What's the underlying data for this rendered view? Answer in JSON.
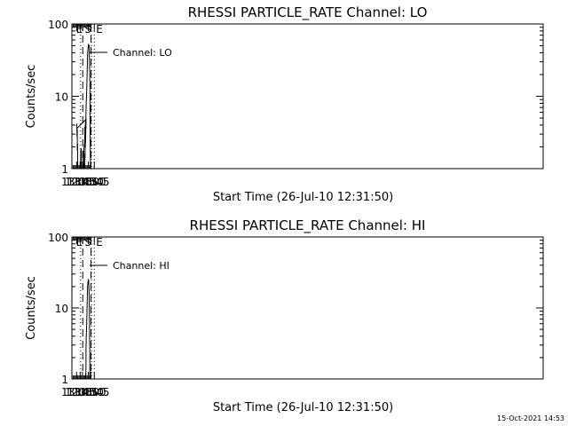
{
  "footer": {
    "timestamp": "15-Oct-2021 14:53"
  },
  "chart_data": [
    {
      "type": "line",
      "title": "RHESSI PARTICLE_RATE Channel: LO",
      "xlabel": "Start Time (26-Jul-10 12:31:50)",
      "ylabel": "Counts/sec",
      "y_scale": "log",
      "ylim": [
        1,
        100
      ],
      "xlim_minutes": [
        12.4,
        46.0
      ],
      "x_ticks": [
        {
          "label": "12:45",
          "value": 12.75
        },
        {
          "label": "13:00",
          "value": 13.0
        },
        {
          "label": "13:15",
          "value": 13.25
        },
        {
          "label": "13:30",
          "value": 13.5
        },
        {
          "label": "13:45",
          "value": 13.75
        },
        {
          "label": "14:00",
          "value": 14.0
        }
      ],
      "y_ticks": [
        {
          "label": "1",
          "value": 1
        },
        {
          "label": "10",
          "value": 10
        },
        {
          "label": "100",
          "value": 100
        }
      ],
      "legend": {
        "label": "Channel: LO",
        "position": "top-left"
      },
      "markers": [
        {
          "label": "E",
          "time": 12.5,
          "style": "none"
        },
        {
          "label": "",
          "time": 12.768,
          "style": "dotted"
        },
        {
          "label": "S",
          "time": 13.263,
          "style": "dashed"
        },
        {
          "label": "",
          "time": 13.606,
          "style": "dashed"
        },
        {
          "label": "E",
          "time": 13.75,
          "style": "dotted"
        },
        {
          "label": "",
          "time": 14.03,
          "style": "dotted"
        }
      ],
      "series": [
        {
          "name": "Channel: LO",
          "segments": [
            [
              [
                12.768,
                1.0
              ],
              [
                12.775,
                1.9
              ],
              [
                12.782,
                1.0
              ],
              [
                12.79,
                1.0
              ],
              [
                12.795,
                1.9
              ],
              [
                12.8,
                1.0
              ]
            ],
            [
              [
                12.893,
                1.0
              ],
              [
                12.9,
                1.9
              ],
              [
                12.92,
                2.0
              ],
              [
                12.935,
                2.2
              ],
              [
                12.945,
                3.0
              ],
              [
                12.952,
                3.8
              ],
              [
                12.96,
                2.8
              ],
              [
                12.968,
                4.0
              ],
              [
                12.975,
                3.6
              ],
              [
                12.983,
                4.6
              ],
              [
                12.99,
                3.5
              ],
              [
                12.998,
                4.8
              ],
              [
                13.005,
                3.6
              ],
              [
                13.012,
                4.2
              ],
              [
                13.018,
                2.8
              ],
              [
                13.025,
                3.5
              ],
              [
                13.032,
                1.8
              ],
              [
                13.04,
                2.2
              ],
              [
                13.047,
                1.0
              ]
            ],
            [
              [
                13.275,
                1.0
              ],
              [
                13.282,
                1.7
              ],
              [
                13.29,
                1.0
              ],
              [
                13.298,
                1.8
              ],
              [
                13.305,
                1.2
              ],
              [
                13.318,
                1.1
              ],
              [
                13.325,
                1.0
              ]
            ],
            [
              [
                13.345,
                1.0
              ],
              [
                13.35,
                1.6
              ],
              [
                13.358,
                1.4
              ],
              [
                13.363,
                2.3
              ],
              [
                13.37,
                1.9
              ],
              [
                13.376,
                2.9
              ],
              [
                13.382,
                2.3
              ],
              [
                13.39,
                4.0
              ],
              [
                13.4,
                6.0
              ],
              [
                13.412,
                8.5
              ],
              [
                13.425,
                12.0
              ],
              [
                13.438,
                17.0
              ],
              [
                13.45,
                24.0
              ],
              [
                13.463,
                33.0
              ],
              [
                13.475,
                41.0
              ],
              [
                13.487,
                47.0
              ],
              [
                13.5,
                51.0
              ],
              [
                13.512,
                52.0
              ],
              [
                13.525,
                50.0
              ],
              [
                13.535,
                45.0
              ],
              [
                13.545,
                37.0
              ],
              [
                13.553,
                28.0
              ],
              [
                13.56,
                18.0
              ],
              [
                13.567,
                10.0
              ],
              [
                13.573,
                5.0
              ],
              [
                13.58,
                2.0
              ],
              [
                13.585,
                1.0
              ]
            ]
          ]
        }
      ]
    },
    {
      "type": "line",
      "title": "RHESSI PARTICLE_RATE Channel: HI",
      "xlabel": "Start Time (26-Jul-10 12:31:50)",
      "ylabel": "Counts/sec",
      "y_scale": "log",
      "ylim": [
        1,
        100
      ],
      "xlim_minutes": [
        12.4,
        46.0
      ],
      "x_ticks": [
        {
          "label": "12:45",
          "value": 12.75
        },
        {
          "label": "13:00",
          "value": 13.0
        },
        {
          "label": "13:15",
          "value": 13.25
        },
        {
          "label": "13:30",
          "value": 13.5
        },
        {
          "label": "13:45",
          "value": 13.75
        },
        {
          "label": "14:00",
          "value": 14.0
        }
      ],
      "y_ticks": [
        {
          "label": "1",
          "value": 1
        },
        {
          "label": "10",
          "value": 10
        },
        {
          "label": "100",
          "value": 100
        }
      ],
      "legend": {
        "label": "Channel: HI",
        "position": "top-left"
      },
      "markers": [
        {
          "label": "E",
          "time": 12.5,
          "style": "none"
        },
        {
          "label": "",
          "time": 12.768,
          "style": "dotted"
        },
        {
          "label": "S",
          "time": 13.263,
          "style": "dashed"
        },
        {
          "label": "",
          "time": 13.606,
          "style": "dashed"
        },
        {
          "label": "E",
          "time": 13.75,
          "style": "dotted"
        },
        {
          "label": "",
          "time": 14.03,
          "style": "dotted"
        }
      ],
      "series": [
        {
          "name": "Channel: HI",
          "segments": [
            [
              [
                13.38,
                1.0
              ],
              [
                13.385,
                1.2
              ],
              [
                13.39,
                1.0
              ],
              [
                13.397,
                1.6
              ],
              [
                13.405,
                2.5
              ],
              [
                13.415,
                4.0
              ],
              [
                13.425,
                6.0
              ],
              [
                13.438,
                9.0
              ],
              [
                13.45,
                13.0
              ],
              [
                13.462,
                17.0
              ],
              [
                13.475,
                21.0
              ],
              [
                13.487,
                24.0
              ],
              [
                13.498,
                25.5
              ],
              [
                13.508,
                24.5
              ],
              [
                13.518,
                21.0
              ],
              [
                13.528,
                16.0
              ],
              [
                13.538,
                11.0
              ],
              [
                13.546,
                7.0
              ],
              [
                13.553,
                4.0
              ],
              [
                13.56,
                2.2
              ],
              [
                13.565,
                1.0
              ]
            ]
          ]
        }
      ]
    }
  ]
}
